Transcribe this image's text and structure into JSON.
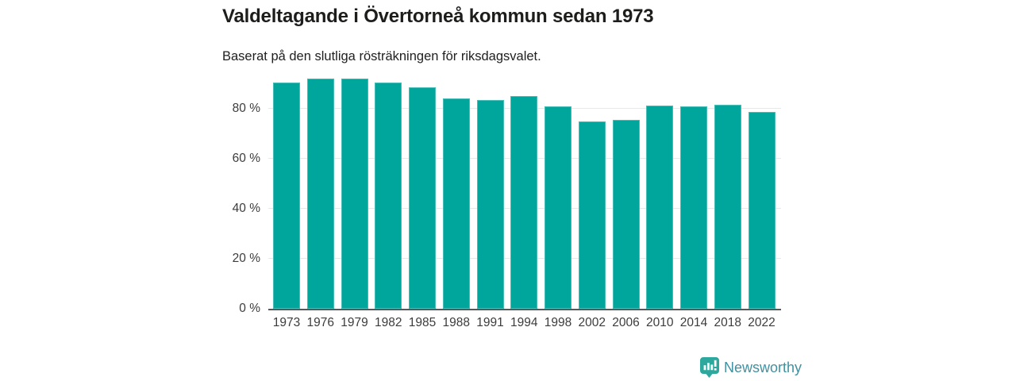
{
  "header": {
    "title": "Valdeltagande i Övertorneå kommun sedan 1973",
    "subtitle": "Baserat på den slutliga rösträkningen för riksdagsvalet."
  },
  "chart_data": {
    "type": "bar",
    "title": "Valdeltagande i Övertorneå kommun sedan 1973",
    "subtitle": "Baserat på den slutliga rösträkningen för riksdagsvalet.",
    "categories": [
      "1973",
      "1976",
      "1979",
      "1982",
      "1985",
      "1988",
      "1991",
      "1994",
      "1998",
      "2002",
      "2006",
      "2010",
      "2014",
      "2018",
      "2022"
    ],
    "values": [
      90.3,
      91.8,
      92.0,
      90.4,
      88.5,
      84.0,
      83.4,
      84.8,
      80.9,
      74.9,
      75.4,
      81.2,
      80.8,
      81.5,
      78.5
    ],
    "unit": "%",
    "xlabel": "",
    "ylabel": "",
    "ylim": [
      0,
      93.5
    ],
    "yticks": [
      0,
      20,
      40,
      60,
      80
    ],
    "ytick_labels": [
      "0 %",
      "20 %",
      "40 %",
      "60 %",
      "80 %"
    ],
    "grid": true,
    "legend": false,
    "bar_color": "#00a59c"
  },
  "footer": {
    "brand": "Newsworthy"
  },
  "colors": {
    "background": "#ffffff",
    "bar": "#00a59c",
    "gridline": "#e8e8e8",
    "axis_line": "#58585a",
    "axis_text": "#3c3c3c",
    "title_text": "#1d1d1b",
    "brand_text": "#4191a1",
    "brand_badge": "#2ea89d"
  }
}
